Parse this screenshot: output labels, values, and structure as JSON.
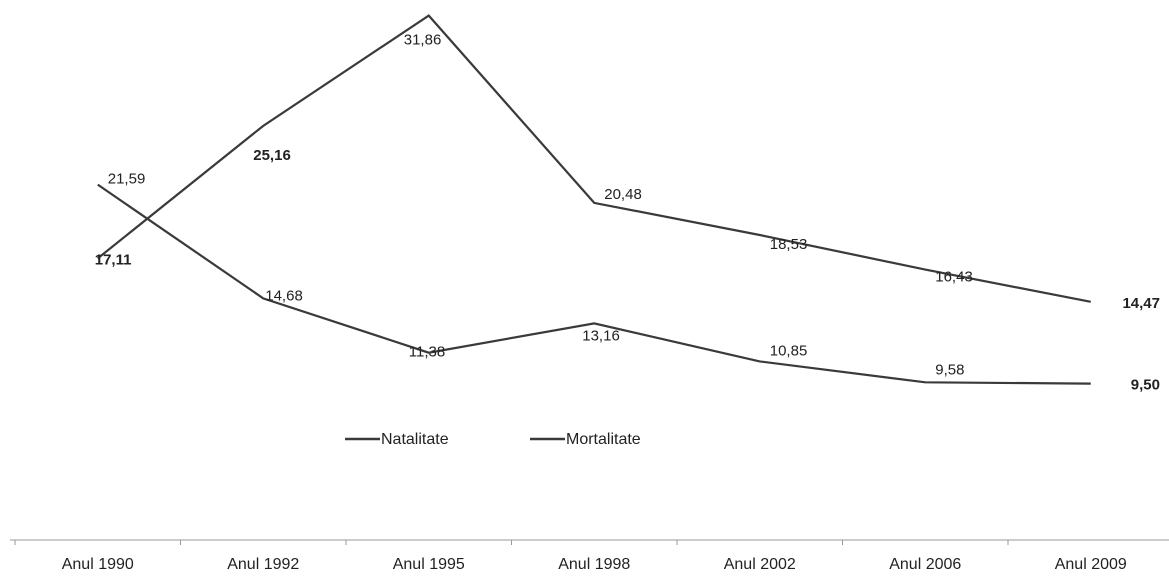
{
  "chart_data": {
    "type": "line",
    "categories": [
      "Anul 1990",
      "Anul 1992",
      "Anul 1995",
      "Anul 1998",
      "Anul 2002",
      "Anul 2006",
      "Anul 2009"
    ],
    "series": [
      {
        "name": "Natalitate",
        "color": "#3a3a3a",
        "values": [
          21.59,
          14.68,
          11.38,
          13.16,
          10.85,
          9.58,
          9.5
        ],
        "value_labels": [
          "21,59",
          "14,68",
          "11,38",
          "13,16",
          "10,85",
          "9,58",
          "9,50"
        ]
      },
      {
        "name": "Mortalitate",
        "color": "#3a3a3a",
        "values": [
          17.11,
          25.16,
          31.86,
          20.48,
          18.53,
          16.43,
          14.47
        ],
        "value_labels": [
          "17,11",
          "25,16",
          "31,86",
          "20,48",
          "18,53",
          "16,43",
          "14,47"
        ]
      }
    ],
    "ylim": [
      0,
      33
    ]
  }
}
